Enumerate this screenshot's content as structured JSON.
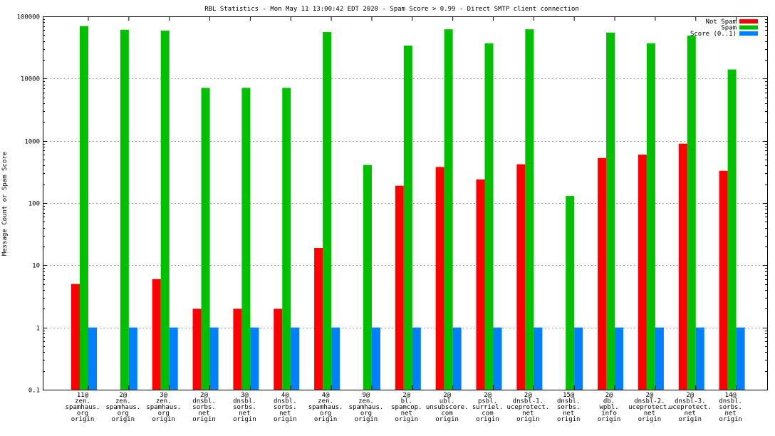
{
  "chart_data": {
    "type": "bar",
    "title": "RBL Statistics - Mon May 11 13:00:42 EDT 2020 - Spam Score > 0.99 - Direct SMTP client connection",
    "xlabel": "",
    "ylabel": "Message Count or Spam Score",
    "scale": "log",
    "ylim": [
      0.1,
      100000
    ],
    "grid": true,
    "legend_position": "top-right",
    "y_ticks": [
      "0.1",
      "1",
      "10",
      "100",
      "1000",
      "10000",
      "100000"
    ],
    "categories": [
      [
        "11@",
        "zen.",
        "spamhaus.",
        "org",
        "origin"
      ],
      [
        "2@",
        "zen.",
        "spamhaus.",
        "org",
        "origin"
      ],
      [
        "3@",
        "zen.",
        "spamhaus.",
        "org",
        "origin"
      ],
      [
        "2@",
        "dnsbl.",
        "sorbs.",
        "net",
        "origin"
      ],
      [
        "3@",
        "dnsbl.",
        "sorbs.",
        "net",
        "origin"
      ],
      [
        "4@",
        "dnsbl.",
        "sorbs.",
        "net",
        "origin"
      ],
      [
        "4@",
        "zen.",
        "spamhaus.",
        "org",
        "origin"
      ],
      [
        "9@",
        "zen.",
        "spamhaus.",
        "org",
        "origin"
      ],
      [
        "2@",
        "bl.",
        "spamcop.",
        "net",
        "origin"
      ],
      [
        "2@",
        "ubl.",
        "unsubscore.",
        "com",
        "origin"
      ],
      [
        "2@",
        "psbl.",
        "surriel.",
        "com",
        "origin"
      ],
      [
        "2@",
        "dnsbl-1.",
        "uceprotect.",
        "net",
        "origin"
      ],
      [
        "15@",
        "dnsbl.",
        "sorbs.",
        "net",
        "origin"
      ],
      [
        "2@",
        "db.",
        "wpbl.",
        "info",
        "origin"
      ],
      [
        "2@",
        "dnsbl-2.",
        "uceprotect.",
        "net",
        "origin"
      ],
      [
        "2@",
        "dnsbl-3.",
        "uceprotect.",
        "net",
        "origin"
      ],
      [
        "14@",
        "dnsbl.",
        "sorbs.",
        "net",
        "origin"
      ]
    ],
    "series": [
      {
        "name": "Not Spam",
        "color": "#ff0000",
        "values": [
          5,
          null,
          6,
          2,
          2,
          2,
          19,
          null,
          190,
          380,
          240,
          420,
          null,
          530,
          600,
          900,
          330
        ]
      },
      {
        "name": "Spam",
        "color": "#00c000",
        "values": [
          70000,
          61000,
          59000,
          7100,
          7100,
          7100,
          56000,
          410,
          34000,
          62000,
          37000,
          62000,
          130,
          55000,
          37000,
          49000,
          14000
        ]
      },
      {
        "name": "Score (0..1)",
        "color": "#0080ff",
        "values": [
          1,
          1,
          1,
          1,
          1,
          1,
          1,
          1,
          1,
          1,
          1,
          1,
          1,
          1,
          1,
          1,
          1
        ]
      }
    ]
  }
}
